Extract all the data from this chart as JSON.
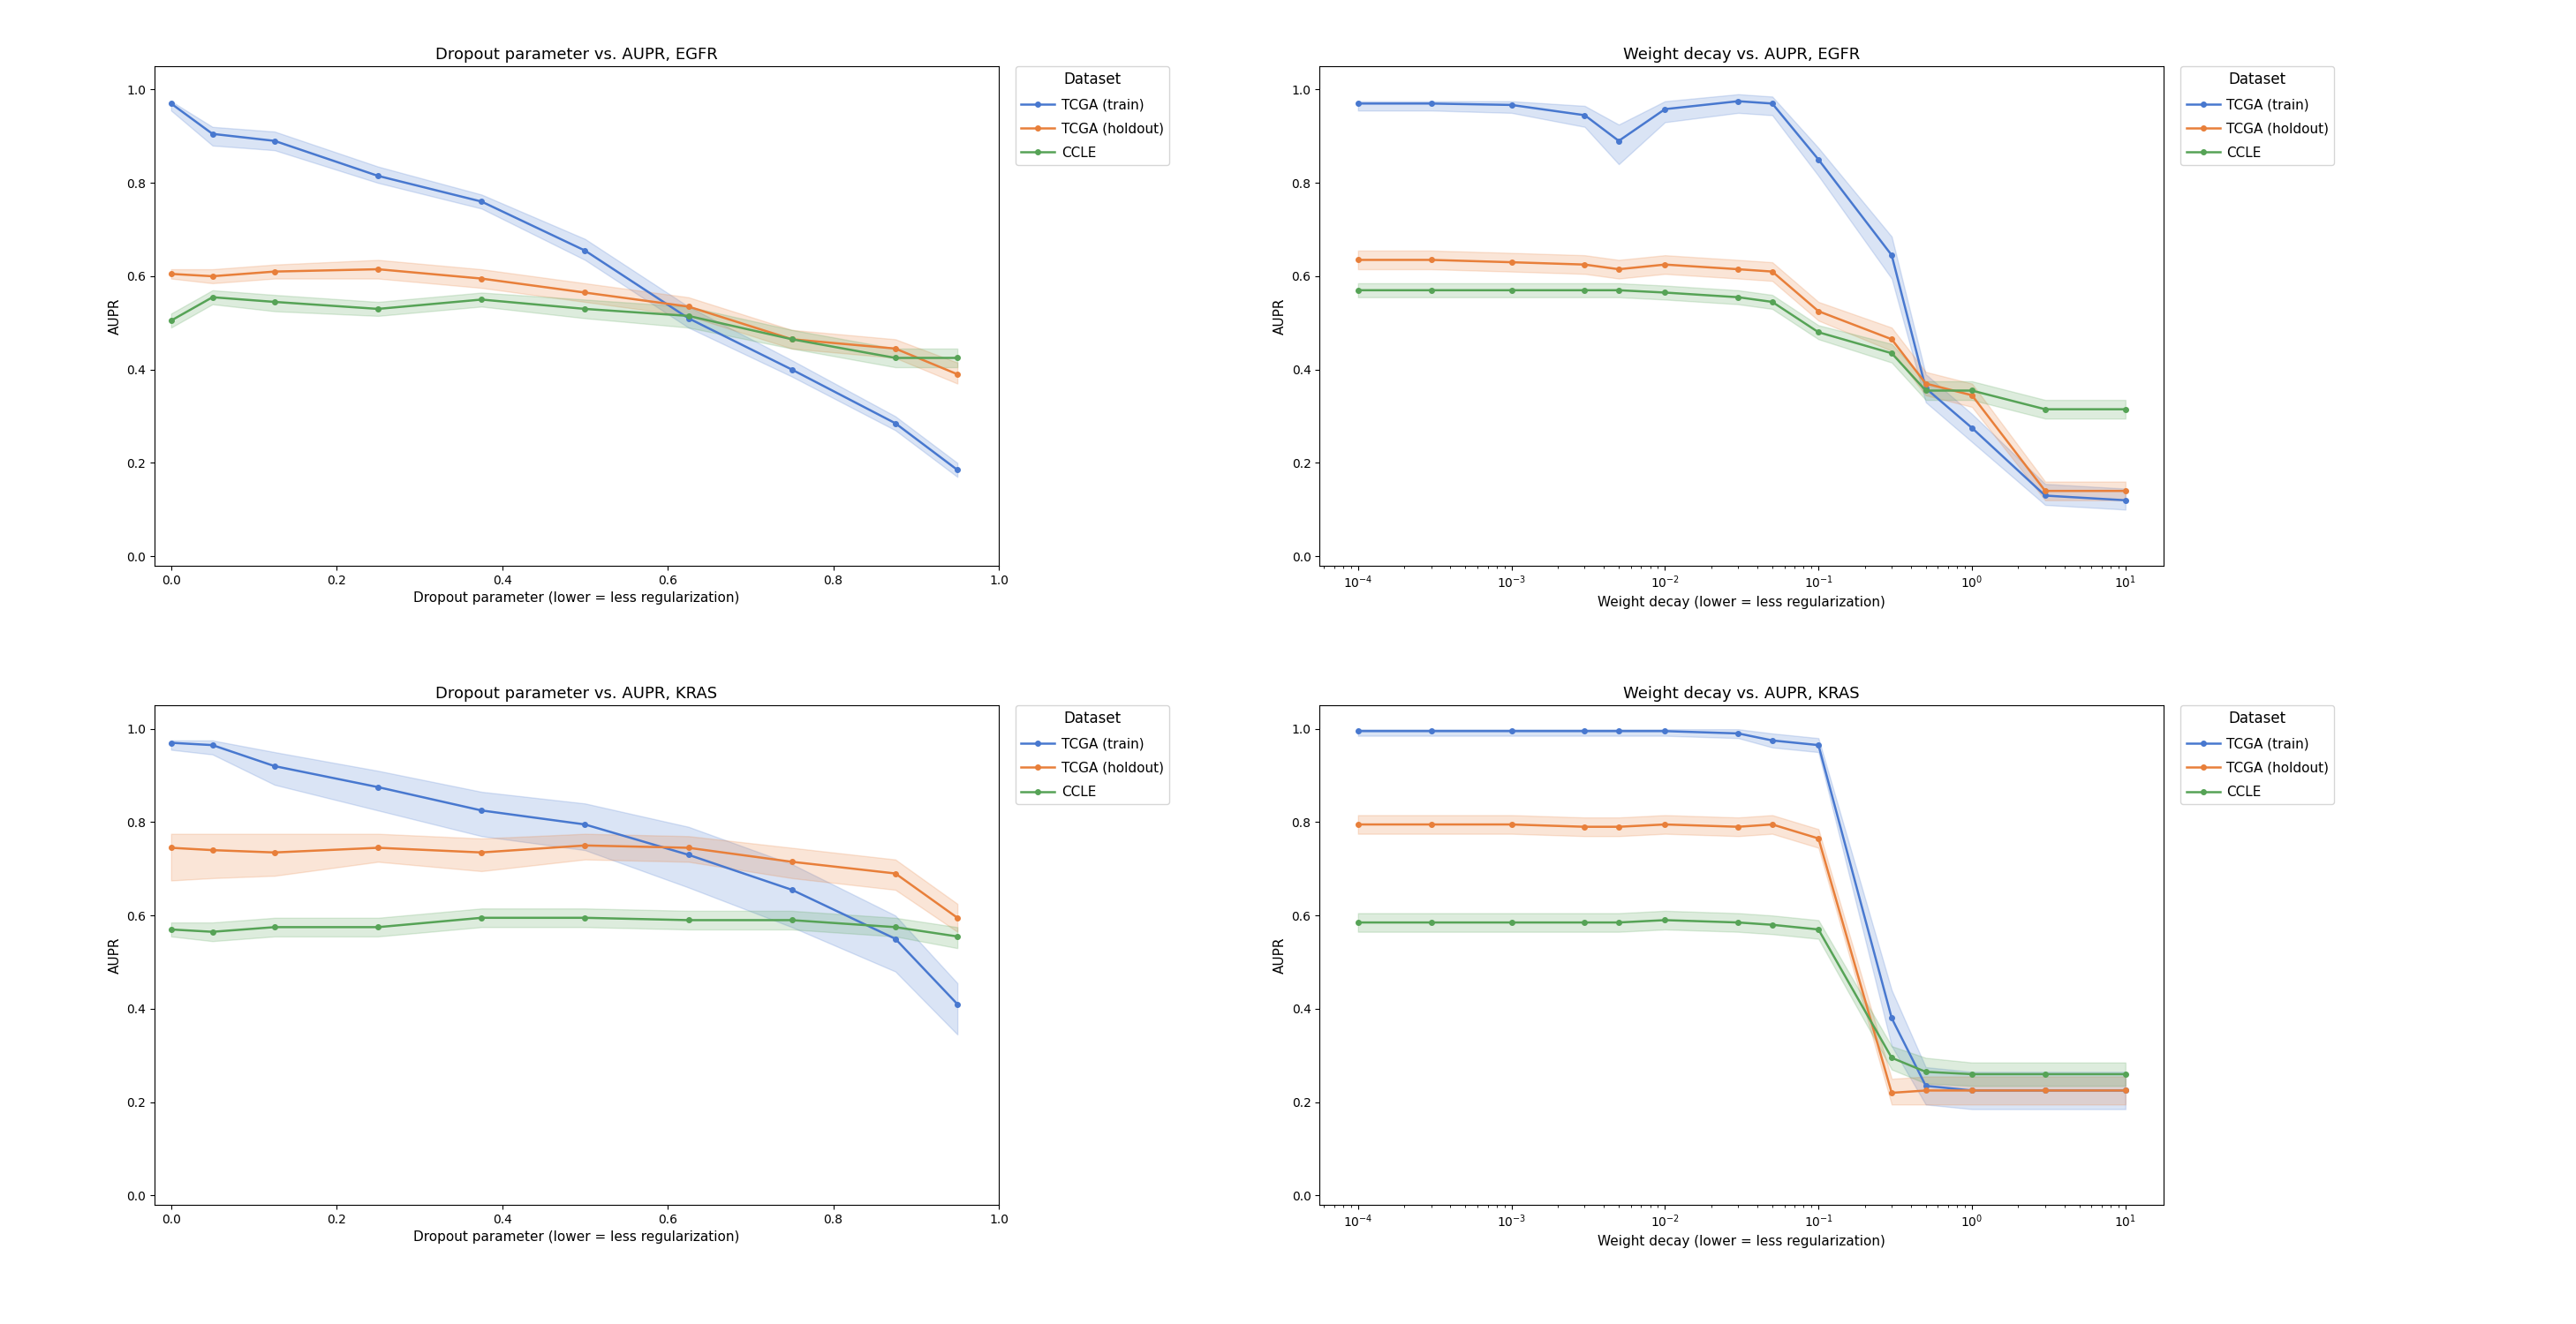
{
  "colors": {
    "blue": "#4878CF",
    "orange": "#E87F3A",
    "green": "#56A356"
  },
  "alpha_fill": 0.2,
  "linewidth": 1.8,
  "markersize": 4,
  "dropout_x": [
    0.0,
    0.05,
    0.125,
    0.25,
    0.375,
    0.5,
    0.625,
    0.75,
    0.875,
    0.95
  ],
  "egfr_dropout_train_y": [
    0.97,
    0.905,
    0.89,
    0.815,
    0.76,
    0.655,
    0.51,
    0.4,
    0.285,
    0.185
  ],
  "egfr_dropout_train_lo": [
    0.955,
    0.88,
    0.87,
    0.8,
    0.745,
    0.635,
    0.49,
    0.385,
    0.27,
    0.17
  ],
  "egfr_dropout_train_hi": [
    0.975,
    0.92,
    0.91,
    0.835,
    0.775,
    0.68,
    0.535,
    0.42,
    0.3,
    0.2
  ],
  "egfr_dropout_holdout_y": [
    0.605,
    0.6,
    0.61,
    0.615,
    0.595,
    0.565,
    0.535,
    0.465,
    0.445,
    0.39
  ],
  "egfr_dropout_holdout_lo": [
    0.595,
    0.585,
    0.595,
    0.595,
    0.575,
    0.545,
    0.515,
    0.445,
    0.425,
    0.37
  ],
  "egfr_dropout_holdout_hi": [
    0.615,
    0.615,
    0.625,
    0.635,
    0.615,
    0.585,
    0.555,
    0.485,
    0.465,
    0.415
  ],
  "egfr_dropout_ccle_y": [
    0.505,
    0.555,
    0.545,
    0.53,
    0.55,
    0.53,
    0.515,
    0.465,
    0.425,
    0.425
  ],
  "egfr_dropout_ccle_lo": [
    0.49,
    0.54,
    0.525,
    0.515,
    0.535,
    0.51,
    0.49,
    0.445,
    0.405,
    0.405
  ],
  "egfr_dropout_ccle_hi": [
    0.52,
    0.57,
    0.56,
    0.545,
    0.565,
    0.55,
    0.535,
    0.485,
    0.445,
    0.445
  ],
  "kras_dropout_train_y": [
    0.97,
    0.965,
    0.92,
    0.875,
    0.825,
    0.795,
    0.73,
    0.655,
    0.55,
    0.41
  ],
  "kras_dropout_train_lo": [
    0.955,
    0.945,
    0.88,
    0.825,
    0.77,
    0.74,
    0.66,
    0.575,
    0.48,
    0.345
  ],
  "kras_dropout_train_hi": [
    0.975,
    0.975,
    0.95,
    0.91,
    0.865,
    0.84,
    0.79,
    0.71,
    0.6,
    0.455
  ],
  "kras_dropout_holdout_y": [
    0.745,
    0.74,
    0.735,
    0.745,
    0.735,
    0.75,
    0.745,
    0.715,
    0.69,
    0.595
  ],
  "kras_dropout_holdout_lo": [
    0.675,
    0.68,
    0.685,
    0.715,
    0.695,
    0.72,
    0.715,
    0.68,
    0.655,
    0.565
  ],
  "kras_dropout_holdout_hi": [
    0.775,
    0.775,
    0.775,
    0.775,
    0.765,
    0.775,
    0.77,
    0.745,
    0.72,
    0.625
  ],
  "kras_dropout_ccle_y": [
    0.57,
    0.565,
    0.575,
    0.575,
    0.595,
    0.595,
    0.59,
    0.59,
    0.575,
    0.555
  ],
  "kras_dropout_ccle_lo": [
    0.555,
    0.545,
    0.555,
    0.555,
    0.575,
    0.575,
    0.57,
    0.57,
    0.555,
    0.53
  ],
  "kras_dropout_ccle_hi": [
    0.585,
    0.585,
    0.595,
    0.595,
    0.615,
    0.615,
    0.61,
    0.61,
    0.595,
    0.575
  ],
  "wd_x": [
    0.0001,
    0.0003,
    0.001,
    0.003,
    0.005,
    0.01,
    0.03,
    0.05,
    0.1,
    0.3,
    0.5,
    1.0,
    3.0,
    10.0
  ],
  "egfr_wd_train_y": [
    0.97,
    0.97,
    0.967,
    0.945,
    0.89,
    0.958,
    0.975,
    0.97,
    0.85,
    0.645,
    0.36,
    0.275,
    0.13,
    0.12
  ],
  "egfr_wd_train_lo": [
    0.955,
    0.955,
    0.95,
    0.92,
    0.84,
    0.93,
    0.95,
    0.945,
    0.815,
    0.595,
    0.33,
    0.245,
    0.11,
    0.1
  ],
  "egfr_wd_train_hi": [
    0.975,
    0.975,
    0.975,
    0.965,
    0.925,
    0.975,
    0.99,
    0.985,
    0.875,
    0.685,
    0.39,
    0.305,
    0.155,
    0.145
  ],
  "egfr_wd_holdout_y": [
    0.635,
    0.635,
    0.63,
    0.625,
    0.615,
    0.625,
    0.615,
    0.61,
    0.525,
    0.465,
    0.37,
    0.345,
    0.14,
    0.14
  ],
  "egfr_wd_holdout_lo": [
    0.615,
    0.615,
    0.61,
    0.605,
    0.595,
    0.605,
    0.595,
    0.59,
    0.505,
    0.44,
    0.345,
    0.32,
    0.12,
    0.12
  ],
  "egfr_wd_holdout_hi": [
    0.655,
    0.655,
    0.65,
    0.645,
    0.635,
    0.645,
    0.635,
    0.63,
    0.545,
    0.49,
    0.395,
    0.37,
    0.16,
    0.16
  ],
  "egfr_wd_ccle_y": [
    0.57,
    0.57,
    0.57,
    0.57,
    0.57,
    0.565,
    0.555,
    0.545,
    0.48,
    0.435,
    0.355,
    0.355,
    0.315,
    0.315
  ],
  "egfr_wd_ccle_lo": [
    0.555,
    0.555,
    0.555,
    0.555,
    0.555,
    0.55,
    0.54,
    0.53,
    0.465,
    0.415,
    0.335,
    0.335,
    0.295,
    0.295
  ],
  "egfr_wd_ccle_hi": [
    0.585,
    0.585,
    0.585,
    0.585,
    0.585,
    0.58,
    0.57,
    0.56,
    0.495,
    0.455,
    0.375,
    0.375,
    0.335,
    0.335
  ],
  "kras_wd_train_y": [
    0.995,
    0.995,
    0.995,
    0.995,
    0.995,
    0.995,
    0.99,
    0.975,
    0.965,
    0.38,
    0.235,
    0.225,
    0.225,
    0.225
  ],
  "kras_wd_train_lo": [
    0.985,
    0.985,
    0.985,
    0.985,
    0.985,
    0.985,
    0.98,
    0.96,
    0.95,
    0.32,
    0.195,
    0.185,
    0.185,
    0.185
  ],
  "kras_wd_train_hi": [
    0.999,
    0.999,
    0.999,
    0.999,
    0.999,
    0.999,
    0.999,
    0.99,
    0.98,
    0.44,
    0.275,
    0.265,
    0.265,
    0.265
  ],
  "kras_wd_holdout_y": [
    0.795,
    0.795,
    0.795,
    0.79,
    0.79,
    0.795,
    0.79,
    0.795,
    0.765,
    0.22,
    0.225,
    0.225,
    0.225,
    0.225
  ],
  "kras_wd_holdout_lo": [
    0.775,
    0.775,
    0.775,
    0.77,
    0.77,
    0.775,
    0.77,
    0.775,
    0.745,
    0.195,
    0.195,
    0.195,
    0.195,
    0.195
  ],
  "kras_wd_holdout_hi": [
    0.815,
    0.815,
    0.815,
    0.81,
    0.81,
    0.815,
    0.81,
    0.815,
    0.785,
    0.25,
    0.255,
    0.255,
    0.255,
    0.255
  ],
  "kras_wd_ccle_y": [
    0.585,
    0.585,
    0.585,
    0.585,
    0.585,
    0.59,
    0.585,
    0.58,
    0.57,
    0.295,
    0.265,
    0.26,
    0.26,
    0.26
  ],
  "kras_wd_ccle_lo": [
    0.565,
    0.565,
    0.565,
    0.565,
    0.565,
    0.57,
    0.565,
    0.56,
    0.55,
    0.27,
    0.24,
    0.235,
    0.235,
    0.235
  ],
  "kras_wd_ccle_hi": [
    0.605,
    0.605,
    0.605,
    0.605,
    0.605,
    0.61,
    0.605,
    0.6,
    0.59,
    0.32,
    0.295,
    0.285,
    0.285,
    0.285
  ],
  "legend_labels": [
    "TCGA (train)",
    "TCGA (holdout)",
    "CCLE"
  ],
  "legend_title": "Dataset",
  "titles": [
    "Dropout parameter vs. AUPR, EGFR",
    "Weight decay vs. AUPR, EGFR",
    "Dropout parameter vs. AUPR, KRAS",
    "Weight decay vs. AUPR, KRAS"
  ],
  "dropout_xlabel": "Dropout parameter (lower = less regularization)",
  "wd_xlabel": "Weight decay (lower = less regularization)",
  "ylabel": "AUPR",
  "ylim": [
    -0.02,
    1.05
  ],
  "dropout_xlim": [
    -0.02,
    1.0
  ],
  "title_fontsize": 13,
  "label_fontsize": 11,
  "tick_fontsize": 10,
  "legend_fontsize": 11,
  "legend_title_fontsize": 12
}
